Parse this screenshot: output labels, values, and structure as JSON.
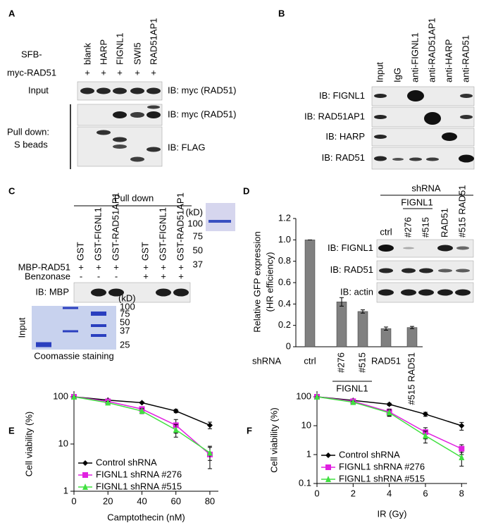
{
  "panels": {
    "A": {
      "label": "A",
      "sfb": "SFB-",
      "lanes": [
        "blank",
        "HARP",
        "FIGNL1",
        "SWI5",
        "RAD51AP1"
      ],
      "myc_rad51": "myc-RAD51",
      "plus": [
        "+",
        "+",
        "+",
        "+",
        "+"
      ],
      "input": "Input",
      "ib_input": "IB: myc (RAD51)",
      "ib_pull": "IB: myc (RAD51)",
      "pull_down": [
        "Pull down:",
        "S beads"
      ],
      "ib_flag": "IB: FLAG"
    },
    "B": {
      "label": "B",
      "lanes": [
        "Input",
        "IgG",
        "anti-FIGNL1",
        "anti-RAD51AP1",
        "anti-HARP",
        "anti-RAD51"
      ],
      "rows": [
        "IB: FIGNL1",
        "IB: RAD51AP1",
        "IB: HARP",
        "IB: RAD51"
      ]
    },
    "C": {
      "label": "C",
      "pull_down": "Pull down",
      "lanes": [
        "GST",
        "GST-FIGNL1",
        "GST-RAD51AP1",
        "GST",
        "GST-FIGNL1",
        "GST-RAD51AP1"
      ],
      "mbp": "MBP-RAD51",
      "mbp_signs": [
        "+",
        "+",
        "+",
        "+",
        "+",
        "+"
      ],
      "benzonase": "Benzonase",
      "benz_signs": [
        "-",
        "-",
        "-",
        "+",
        "+",
        "+"
      ],
      "ib": "IB: MBP",
      "input": "Input",
      "kd": "(kD)",
      "markers": [
        "100",
        "75",
        "50",
        "37",
        "25"
      ],
      "stain": "Coomassie staining",
      "gel_kd": "(kD)",
      "gel_markers": [
        "100",
        "75",
        "50",
        "37"
      ]
    },
    "D": {
      "label": "D",
      "shrna": "shRNA",
      "fignl1": "FIGNL1",
      "lanes": [
        "ctrl",
        "#276",
        "#515",
        "RAD51",
        "#515 RAD51"
      ],
      "rows": [
        "IB: FIGNL1",
        "IB: RAD51",
        "IB: actin"
      ]
    },
    "E": {
      "label": "E"
    },
    "F": {
      "label": "F"
    }
  },
  "chart_data": [
    {
      "type": "bar",
      "y_label": [
        "Relative GFP expression",
        "(HR efficiency)"
      ],
      "x_label": "shRNA",
      "categories": [
        "ctrl",
        "#276",
        "#515",
        "RAD51",
        "#515 RAD51"
      ],
      "group_label": "FIGNL1",
      "values": [
        1,
        0.42,
        0.33,
        0.17,
        0.18
      ],
      "errors": [
        0,
        0.04,
        0.015,
        0.015,
        0.01
      ],
      "color": "#808080",
      "ylim": [
        0,
        1.2
      ],
      "yticks": [
        0,
        0.2,
        0.4,
        0.6,
        0.8,
        {
          "value": 1,
          "label": "1.0"
        },
        1.2
      ]
    },
    {
      "type": "line",
      "log_y": true,
      "x_label": "Camptothecin (nM)",
      "y_label": "Cell viability (%)",
      "x": [
        0,
        20,
        40,
        60,
        80
      ],
      "series": [
        {
          "name": "Control shRNA",
          "color": "#000000",
          "marker": "diamond",
          "values": [
            100,
            85,
            75,
            50,
            25
          ],
          "errors": [
            0,
            3,
            3,
            4,
            4
          ]
        },
        {
          "name": "FIGNL1 shRNA #276",
          "color": "#e020e0",
          "marker": "square",
          "values": [
            100,
            80,
            55,
            25,
            6
          ],
          "errors": [
            0,
            5,
            6,
            8,
            3
          ]
        },
        {
          "name": "FIGNL1 shRNA #515",
          "color": "#40e040",
          "marker": "triangle",
          "values": [
            100,
            75,
            50,
            20,
            6.5
          ],
          "errors": [
            0,
            5,
            6,
            6,
            2
          ]
        }
      ],
      "xlim": [
        0,
        85
      ],
      "xticks": [
        0,
        20,
        40,
        60,
        80
      ],
      "ylim": [
        1,
        100
      ],
      "yticks": [
        1,
        10,
        100
      ],
      "legend": "lower left"
    },
    {
      "type": "line",
      "log_y": true,
      "x_label": "IR (Gy)",
      "y_label": "Cell viability (%)",
      "x": [
        0,
        2,
        4,
        6,
        8
      ],
      "series": [
        {
          "name": "Control shRNA",
          "color": "#000000",
          "marker": "diamond",
          "values": [
            100,
            75,
            55,
            25,
            10
          ],
          "errors": [
            0,
            4,
            5,
            4,
            3
          ]
        },
        {
          "name": "FIGNL1 shRNA #276",
          "color": "#e020e0",
          "marker": "square",
          "values": [
            100,
            70,
            30,
            6,
            1.6
          ],
          "errors": [
            0,
            6,
            8,
            2.5,
            0.6
          ]
        },
        {
          "name": "FIGNL1 shRNA #515",
          "color": "#40e040",
          "marker": "triangle",
          "values": [
            100,
            65,
            28,
            4.5,
            0.8
          ],
          "errors": [
            0,
            6,
            7,
            2,
            0.4
          ]
        }
      ],
      "xlim": [
        0,
        8.3
      ],
      "xticks": [
        0,
        2,
        4,
        6,
        8
      ],
      "ylim": [
        0.1,
        100
      ],
      "yticks": [
        0.1,
        1,
        10,
        100
      ],
      "legend": "lower left"
    }
  ]
}
